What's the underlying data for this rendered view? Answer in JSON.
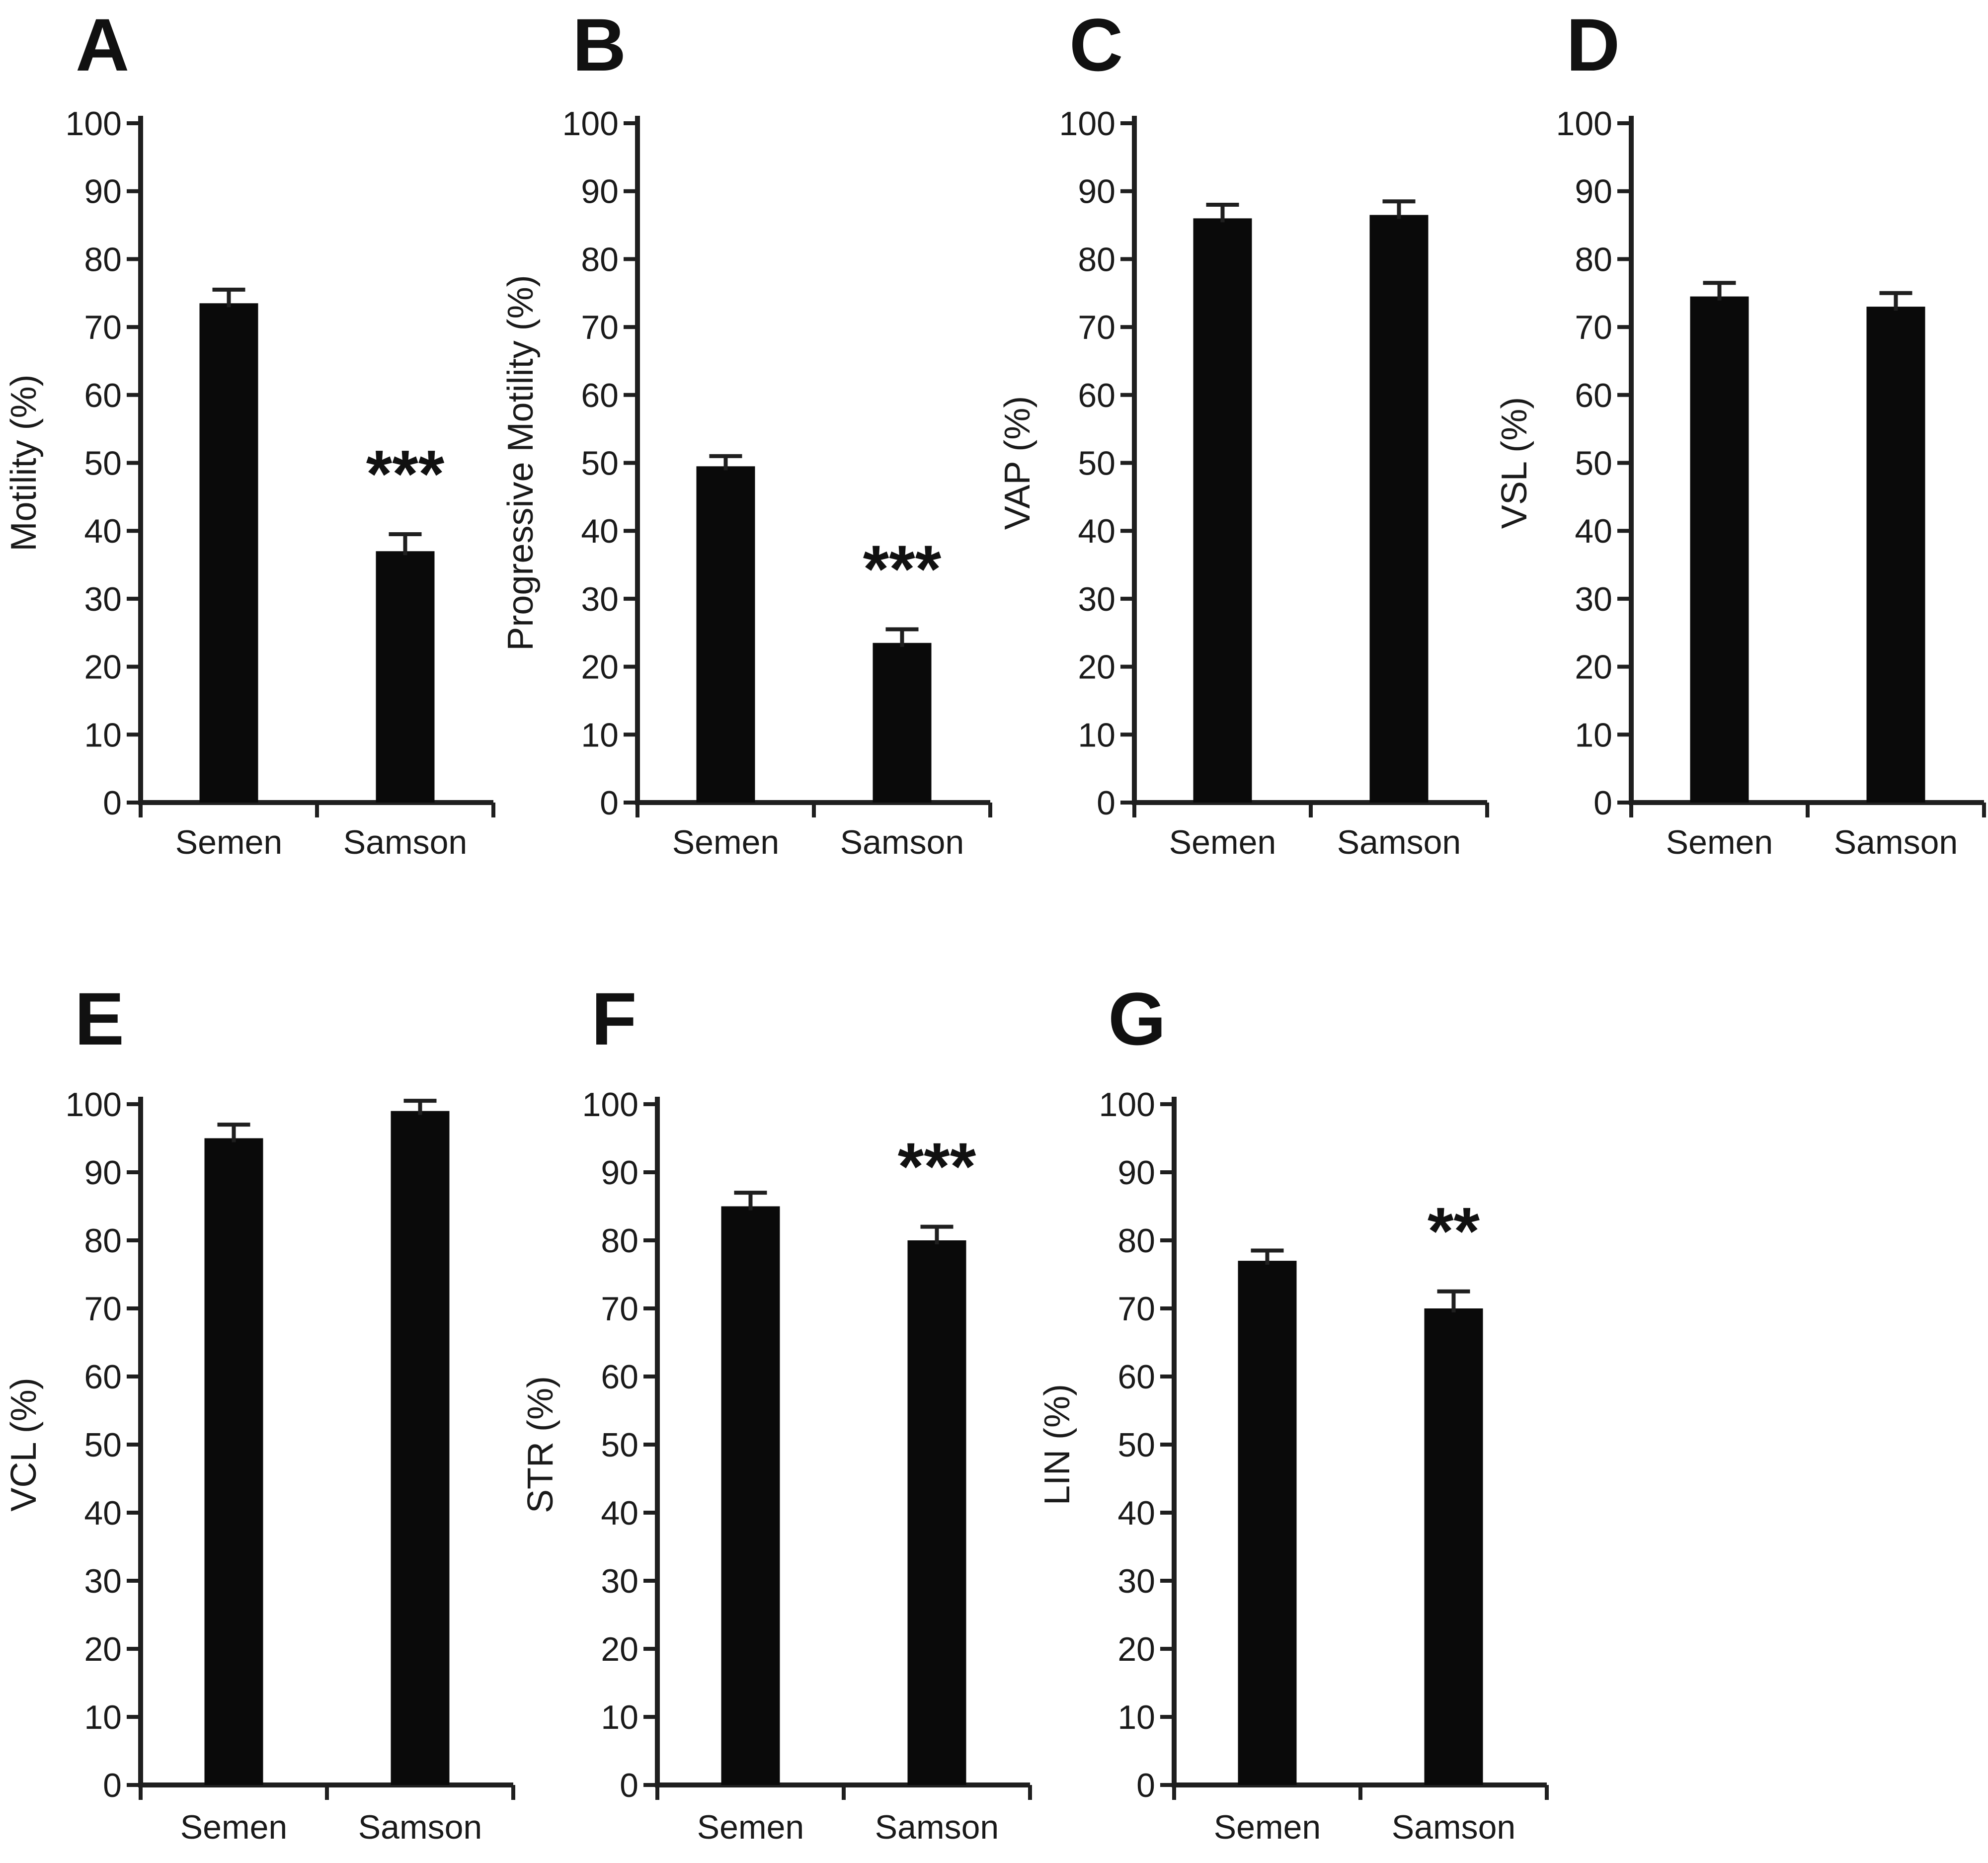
{
  "figure": {
    "background": "#ffffff",
    "bar_color": "#0a0a0a",
    "text_color": "#1a1a1a",
    "group_labels": [
      "Semen",
      "Samson"
    ]
  },
  "chart_data": [
    {
      "panel_label": "A",
      "type": "bar",
      "ylabel": "Motility (%)",
      "categories": [
        "Semen",
        "Samson"
      ],
      "values": [
        73.5,
        37
      ],
      "errors": [
        2,
        2.5
      ],
      "significance": [
        null,
        "***"
      ],
      "ylim": [
        0,
        100
      ],
      "ytick_step": 10,
      "grid": false,
      "legend": false
    },
    {
      "panel_label": "B",
      "type": "bar",
      "ylabel": "Progressive Motility (%)",
      "categories": [
        "Semen",
        "Samson"
      ],
      "values": [
        49.5,
        23.5
      ],
      "errors": [
        1.5,
        2
      ],
      "significance": [
        null,
        "***"
      ],
      "ylim": [
        0,
        100
      ],
      "ytick_step": 10,
      "grid": false,
      "legend": false
    },
    {
      "panel_label": "C",
      "type": "bar",
      "ylabel": "VAP (%)",
      "categories": [
        "Semen",
        "Samson"
      ],
      "values": [
        86,
        86.5
      ],
      "errors": [
        2,
        2
      ],
      "significance": [
        null,
        null
      ],
      "ylim": [
        0,
        100
      ],
      "ytick_step": 10,
      "grid": false,
      "legend": false
    },
    {
      "panel_label": "D",
      "type": "bar",
      "ylabel": "VSL (%)",
      "categories": [
        "Semen",
        "Samson"
      ],
      "values": [
        74.5,
        73
      ],
      "errors": [
        2,
        2
      ],
      "significance": [
        null,
        null
      ],
      "ylim": [
        0,
        100
      ],
      "ytick_step": 10,
      "grid": false,
      "legend": false
    },
    {
      "panel_label": "E",
      "type": "bar",
      "ylabel": "VCL (%)",
      "categories": [
        "Semen",
        "Samson"
      ],
      "values": [
        95,
        99
      ],
      "errors": [
        2,
        1.5
      ],
      "significance": [
        null,
        null
      ],
      "ylim": [
        0,
        100
      ],
      "ytick_step": 10,
      "grid": false,
      "legend": false
    },
    {
      "panel_label": "F",
      "type": "bar",
      "ylabel": "STR (%)",
      "categories": [
        "Semen",
        "Samson"
      ],
      "values": [
        85,
        80
      ],
      "errors": [
        2,
        2
      ],
      "significance": [
        null,
        "***"
      ],
      "ylim": [
        0,
        100
      ],
      "ytick_step": 10,
      "grid": false,
      "legend": false
    },
    {
      "panel_label": "G",
      "type": "bar",
      "ylabel": "LIN (%)",
      "categories": [
        "Semen",
        "Samson"
      ],
      "values": [
        77,
        70
      ],
      "errors": [
        1.5,
        2.5
      ],
      "significance": [
        null,
        "**"
      ],
      "ylim": [
        0,
        100
      ],
      "ytick_step": 10,
      "grid": false,
      "legend": false
    }
  ]
}
